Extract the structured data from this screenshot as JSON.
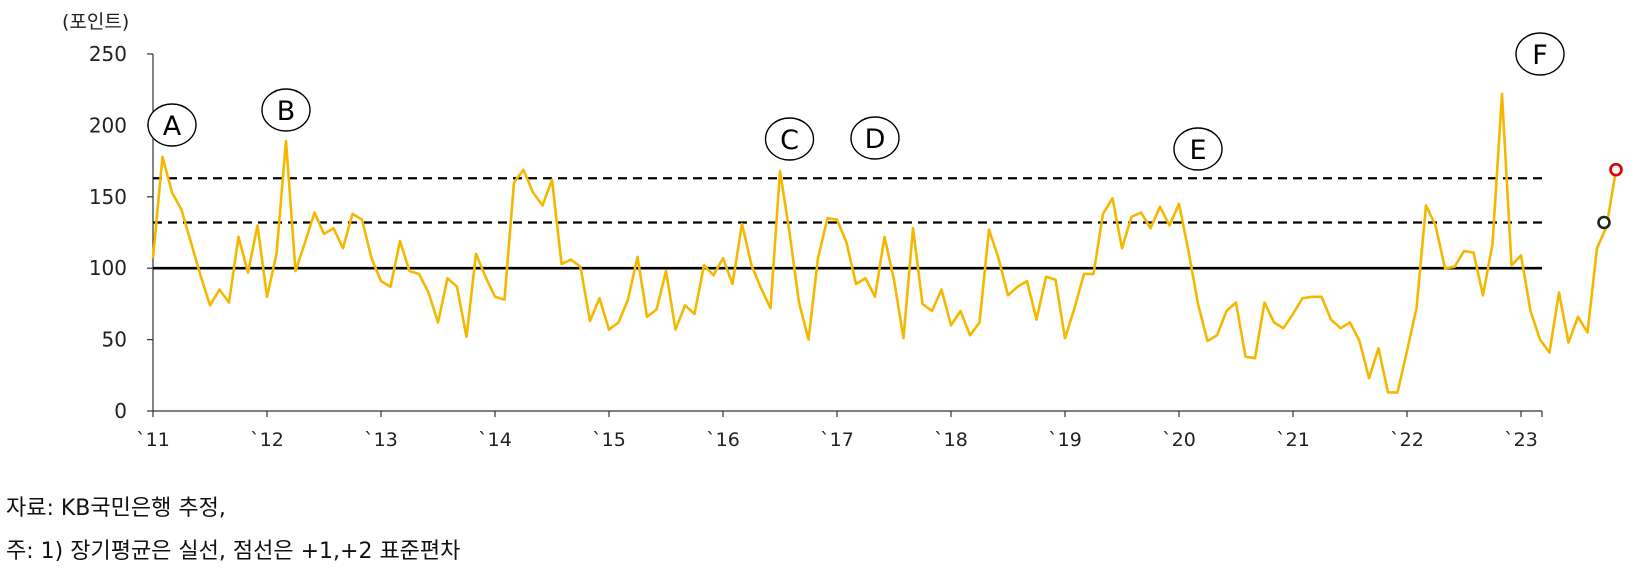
{
  "chart_data": {
    "type": "line",
    "unit_label": "(포인트)",
    "ylim": [
      0,
      250
    ],
    "yticks": [
      0,
      50,
      100,
      150,
      200,
      250
    ],
    "x_tick_labels": [
      "`11",
      "`12",
      "`13",
      "`14",
      "`15",
      "`16",
      "`17",
      "`18",
      "`19",
      "`20",
      "`21",
      "`22",
      "`23"
    ],
    "x_start": "2011-01",
    "x_end": "2023-11",
    "grid": false,
    "series": [
      {
        "color": "#F5B800",
        "values": [
          107,
          178,
          153,
          141,
          118,
          95,
          74,
          85,
          76,
          122,
          97,
          130,
          80,
          110,
          189,
          98,
          118,
          139,
          124,
          128,
          114,
          138,
          134,
          107,
          91,
          87,
          119,
          98,
          96,
          83,
          62,
          93,
          87,
          52,
          110,
          94,
          80,
          78,
          160,
          169,
          153,
          144,
          162,
          103,
          106,
          101,
          63,
          79,
          57,
          62,
          78,
          108,
          66,
          71,
          98,
          57,
          74,
          68,
          102,
          95,
          107,
          89,
          131,
          102,
          86,
          72,
          168,
          125,
          76,
          50,
          107,
          135,
          134,
          118,
          89,
          93,
          80,
          122,
          92,
          51,
          128,
          75,
          70,
          85,
          60,
          70,
          53,
          62,
          127,
          107,
          81,
          87,
          91,
          64,
          94,
          92,
          51,
          72,
          96,
          96,
          138,
          149,
          114,
          136,
          139,
          128,
          143,
          130,
          145,
          112,
          75,
          49,
          53,
          70,
          76,
          38,
          37,
          76,
          62,
          58,
          68,
          79,
          80,
          80,
          64,
          58,
          62,
          49,
          23,
          44,
          13,
          13,
          42,
          72,
          144,
          130,
          100,
          101,
          112,
          111,
          81,
          117,
          222,
          102,
          109,
          70,
          50,
          41,
          83,
          48,
          66,
          55,
          114,
          129,
          169
        ]
      }
    ],
    "reference_lines": [
      {
        "value": 100,
        "style": "solid",
        "color": "#000000"
      },
      {
        "value": 132,
        "style": "dashed",
        "color": "#000000"
      },
      {
        "value": 163,
        "style": "dashed",
        "color": "#000000"
      }
    ],
    "end_markers": [
      {
        "value": 132,
        "color": "#222222"
      },
      {
        "value": 169,
        "color": "#E00000"
      }
    ],
    "annotations": [
      {
        "label": "A",
        "x_month": 2
      },
      {
        "label": "B",
        "x_month": 14
      },
      {
        "label": "C",
        "x_month": 67
      },
      {
        "label": "D",
        "x_month": 76
      },
      {
        "label": "E",
        "x_month": 110
      },
      {
        "label": "F",
        "x_month": 146
      }
    ]
  },
  "footer": {
    "source": "자료: KB국민은행 추정,",
    "note": "주: 1) 장기평균은 실선, 점선은 +1,+2 표준편차"
  }
}
